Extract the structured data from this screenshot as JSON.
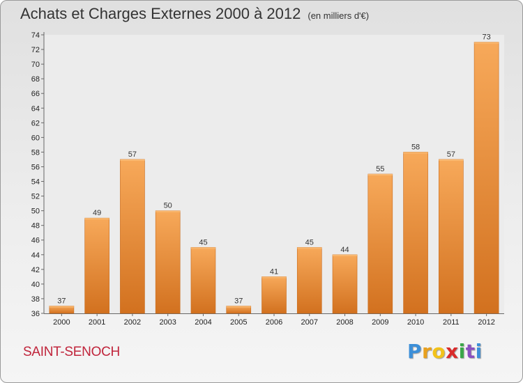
{
  "chart_data": {
    "type": "bar",
    "title": "Achats et Charges Externes 2000 à 2012",
    "subtitle": "(en milliers d'€)",
    "categories": [
      "2000",
      "2001",
      "2002",
      "2003",
      "2004",
      "2005",
      "2006",
      "2007",
      "2008",
      "2009",
      "2010",
      "2011",
      "2012"
    ],
    "values": [
      37,
      49,
      57,
      50,
      45,
      37,
      41,
      45,
      44,
      55,
      58,
      57,
      73
    ],
    "ylim": [
      36,
      74
    ],
    "yticks": [
      36,
      38,
      40,
      42,
      44,
      46,
      48,
      50,
      52,
      54,
      56,
      58,
      60,
      62,
      64,
      66,
      68,
      70,
      72,
      74
    ],
    "grid": false,
    "bar_color": "#f0923a",
    "bar_color_light": "#f7a95a",
    "bar_color_dark": "#d2711f"
  },
  "location": "SAINT-SENOCH",
  "brand": {
    "letters": [
      "P",
      "r",
      "o",
      "x",
      "i",
      "t",
      "i"
    ],
    "colors": [
      "#3c8fd8",
      "#e8a01e",
      "#f2c21a",
      "#d92b2b",
      "#3aa648",
      "#8a4fc0",
      "#3c8fd8"
    ]
  }
}
